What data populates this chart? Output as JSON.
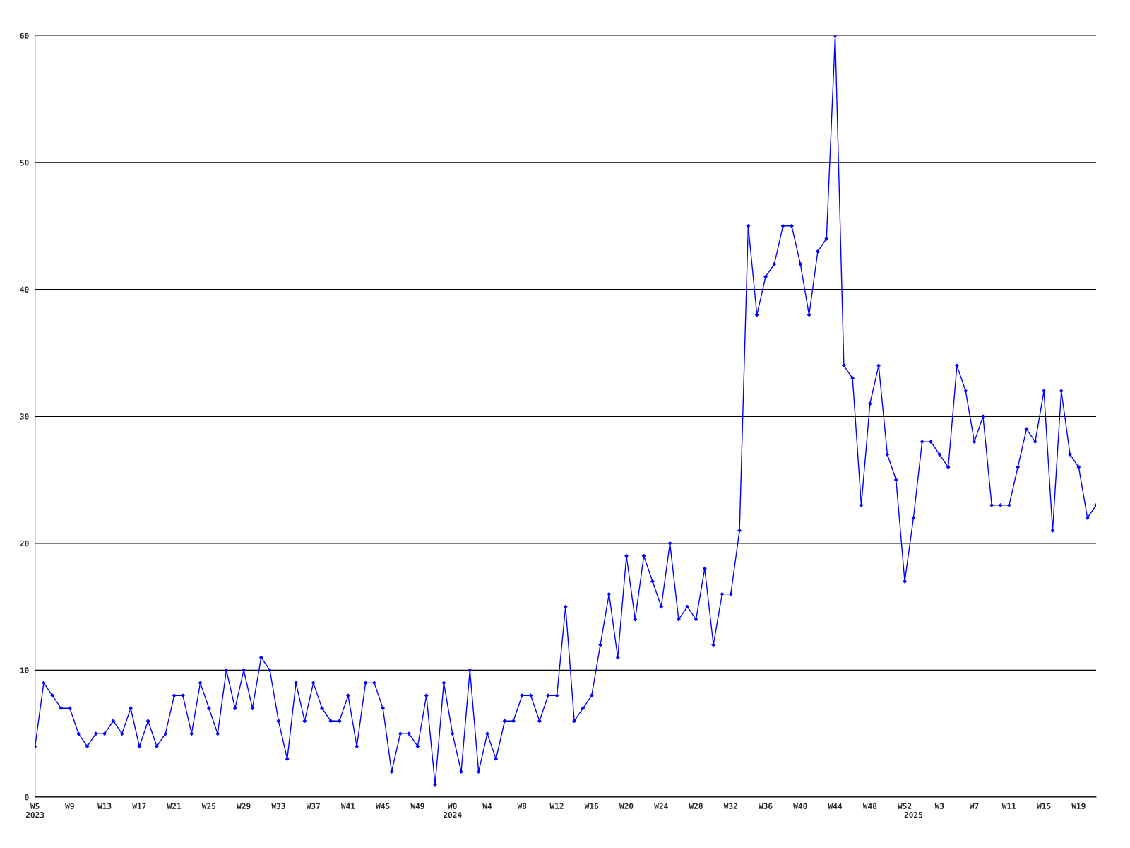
{
  "chart_data": {
    "type": "line",
    "categories": [
      "W5\n2023",
      null,
      null,
      null,
      "W9",
      null,
      null,
      null,
      "W13",
      null,
      null,
      null,
      "W17",
      null,
      null,
      null,
      "W21",
      null,
      null,
      null,
      "W25",
      null,
      null,
      null,
      "W29",
      null,
      null,
      null,
      "W33",
      null,
      null,
      null,
      "W37",
      null,
      null,
      null,
      "W41",
      null,
      null,
      null,
      "W45",
      null,
      null,
      null,
      "W49",
      null,
      null,
      null,
      "W0\n2024",
      null,
      null,
      null,
      "W4",
      null,
      null,
      null,
      "W8",
      null,
      null,
      null,
      "W12",
      null,
      null,
      null,
      "W16",
      null,
      null,
      null,
      "W20",
      null,
      null,
      null,
      "W24",
      null,
      null,
      null,
      "W28",
      null,
      null,
      null,
      "W32",
      null,
      null,
      null,
      "W36",
      null,
      null,
      null,
      "W40",
      null,
      null,
      null,
      "W44",
      null,
      null,
      null,
      "W48",
      null,
      null,
      null,
      "W52",
      "\n2025",
      null,
      null,
      "W3",
      null,
      null,
      null,
      "W7",
      null,
      null,
      null,
      "W11",
      null,
      null,
      null,
      "W15",
      null,
      null,
      null,
      "W19",
      null,
      null
    ],
    "series": [
      {
        "color": "#0000ff",
        "values": [
          4,
          9,
          8,
          7,
          7,
          5,
          4,
          5,
          5,
          6,
          5,
          7,
          4,
          6,
          4,
          5,
          8,
          8,
          5,
          9,
          7,
          5,
          10,
          7,
          10,
          7,
          11,
          10,
          6,
          3,
          9,
          6,
          9,
          7,
          6,
          6,
          8,
          4,
          9,
          9,
          7,
          2,
          5,
          5,
          4,
          8,
          1,
          9,
          5,
          2,
          10,
          2,
          5,
          3,
          6,
          6,
          8,
          8,
          6,
          8,
          8,
          15,
          6,
          7,
          8,
          12,
          16,
          11,
          19,
          14,
          19,
          17,
          15,
          20,
          14,
          15,
          14,
          18,
          12,
          16,
          16,
          21,
          45,
          38,
          41,
          42,
          45,
          45,
          42,
          38,
          43,
          44,
          60,
          34,
          33,
          23,
          31,
          34,
          27,
          25,
          17,
          22,
          28,
          28,
          27,
          26,
          34,
          32,
          28,
          30,
          23,
          23,
          23,
          26,
          29,
          28,
          32,
          21,
          32,
          27,
          26,
          22,
          23
        ]
      }
    ],
    "ylim": [
      0,
      60
    ],
    "yticks": [
      0,
      10,
      20,
      30,
      40,
      50,
      60
    ],
    "grid": "y",
    "marker": "diamond",
    "line_style": "solid"
  }
}
